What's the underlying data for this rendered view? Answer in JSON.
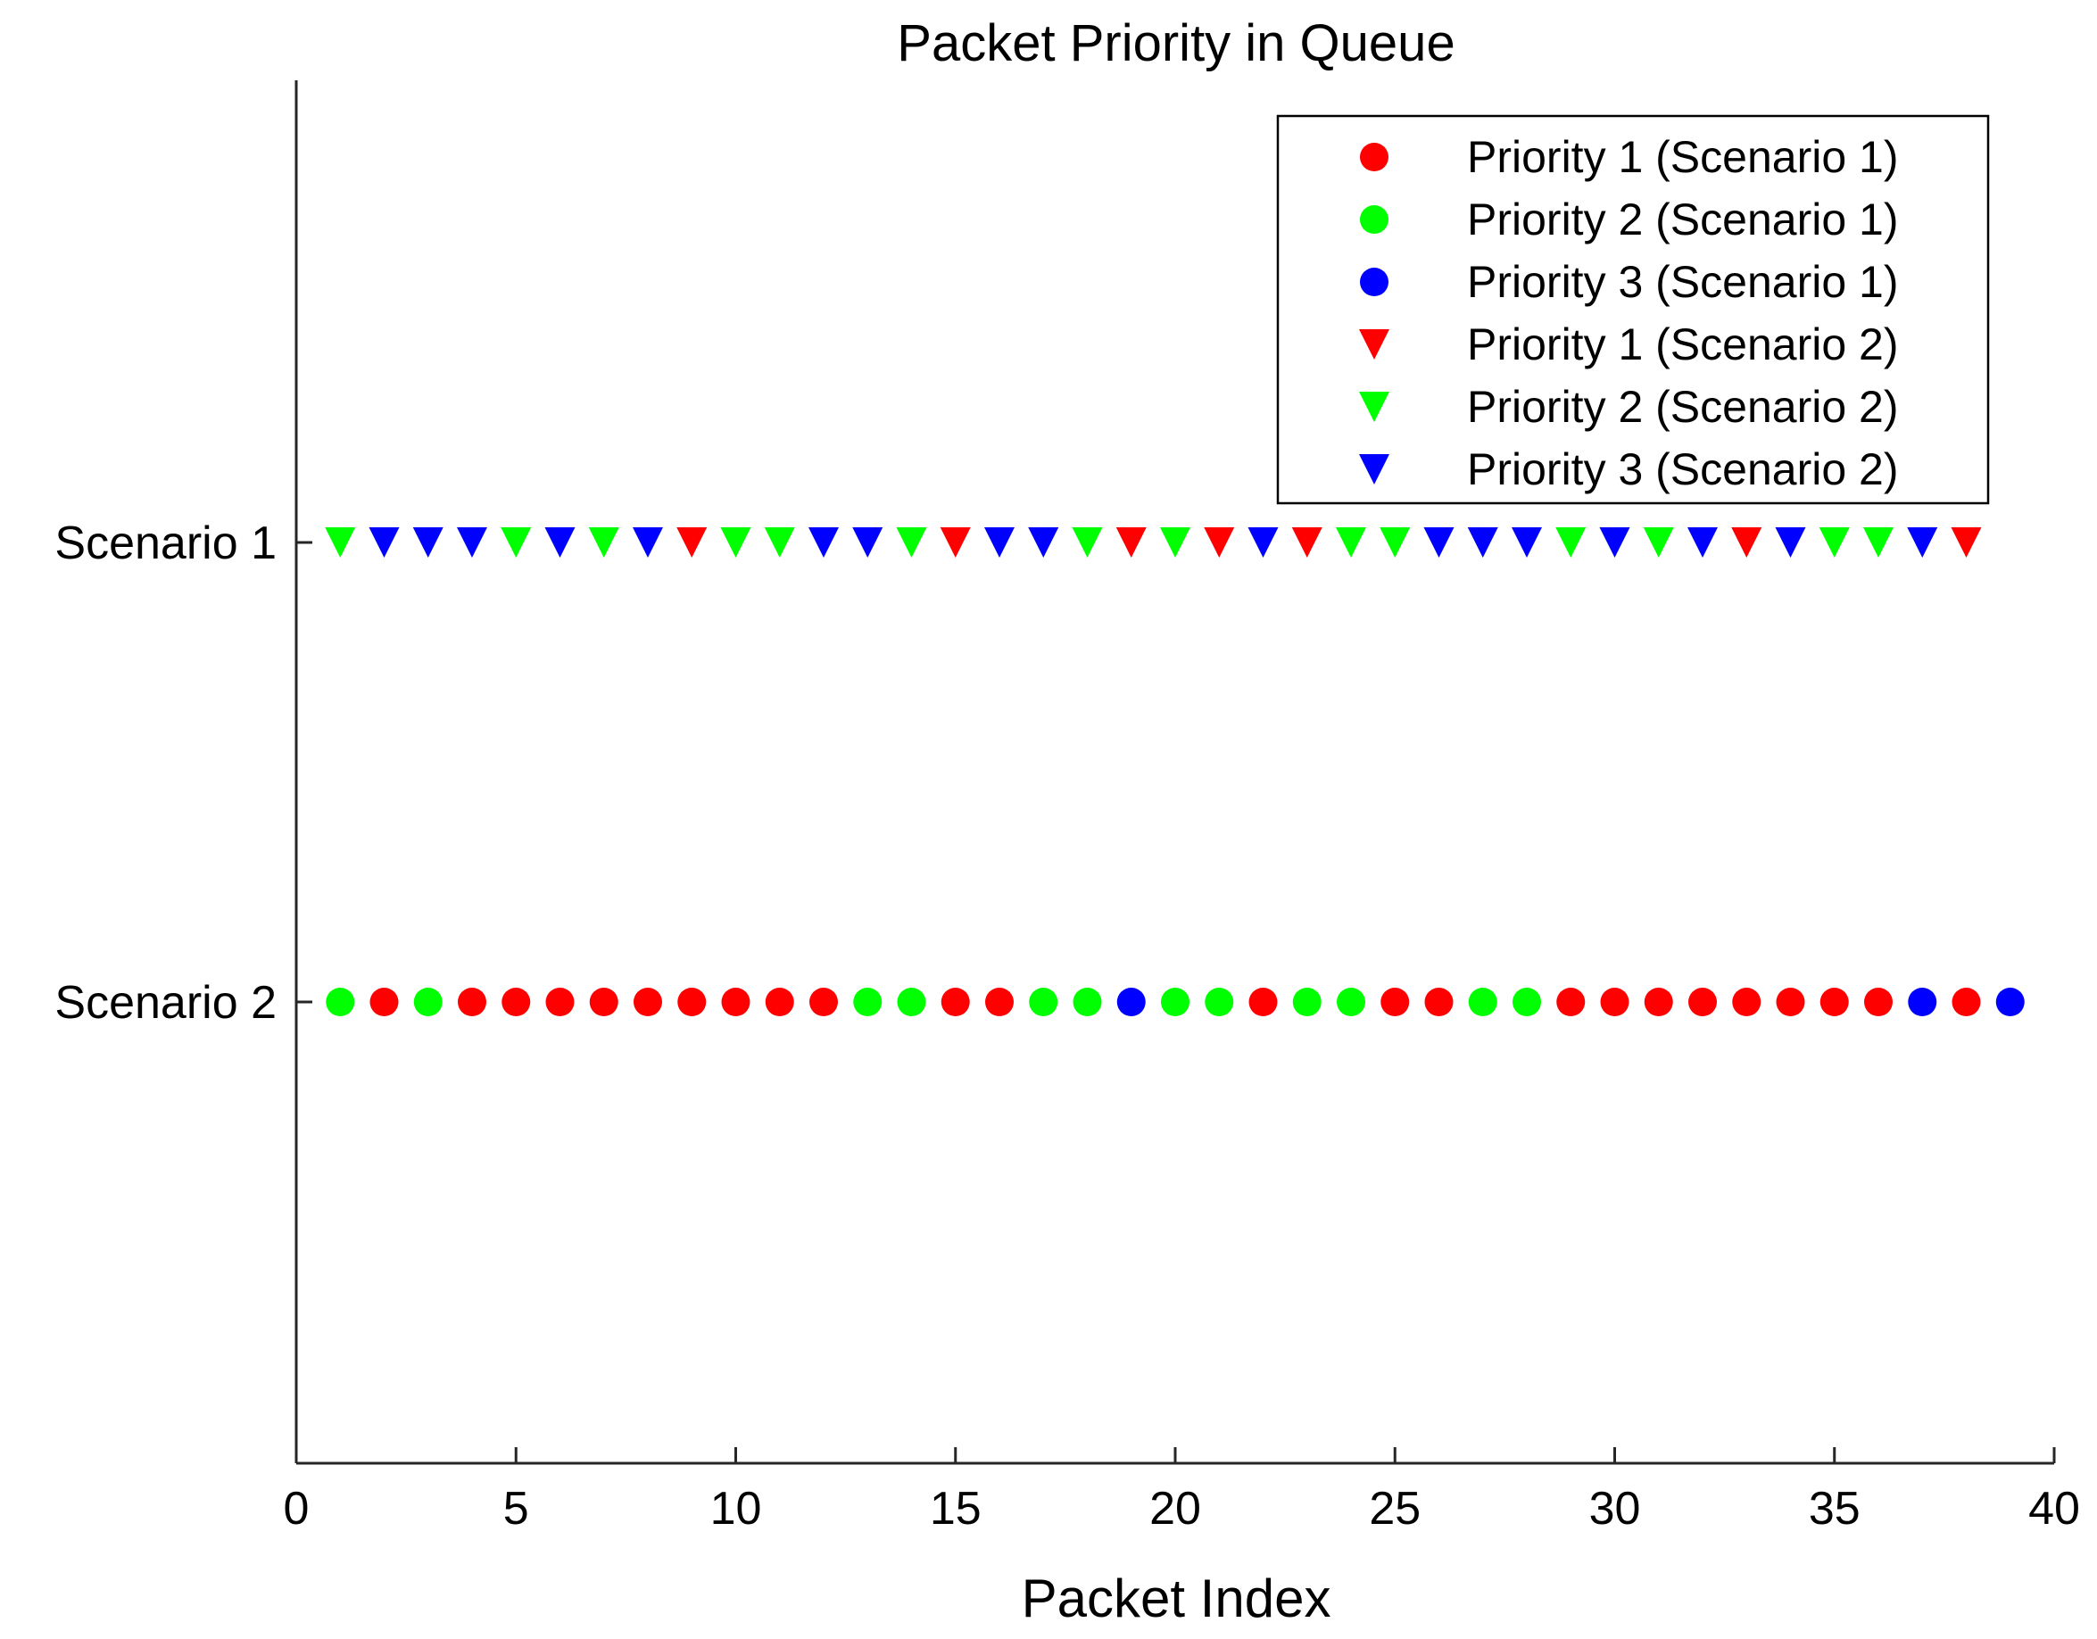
{
  "chart_data": {
    "type": "scatter",
    "title": "Packet Priority in Queue",
    "xlabel": "Packet Index",
    "ylabel": "",
    "xlim": [
      0,
      40
    ],
    "xticks": [
      0,
      5,
      10,
      15,
      20,
      25,
      30,
      35,
      40
    ],
    "ycategories": [
      "Scenario 1",
      "Scenario 2"
    ],
    "grid": false,
    "legend_position": "top-right",
    "colors": {
      "1": "#ff0000",
      "2": "#00ff00",
      "3": "#0000ff"
    },
    "series": [
      {
        "name": "Priority 1 (Scenario 1)",
        "marker": "circle",
        "color": "#ff0000",
        "y": "Scenario 2",
        "x": [
          2,
          4,
          5,
          6,
          7,
          8,
          9,
          10,
          11,
          12,
          15,
          16,
          22,
          25,
          26,
          29,
          30,
          31,
          32,
          33,
          34,
          35,
          36,
          38
        ]
      },
      {
        "name": "Priority 2 (Scenario 1)",
        "marker": "circle",
        "color": "#00ff00",
        "y": "Scenario 2",
        "x": [
          1,
          3,
          13,
          14,
          17,
          18,
          20,
          21,
          23,
          24,
          27,
          28
        ]
      },
      {
        "name": "Priority 3 (Scenario 1)",
        "marker": "circle",
        "color": "#0000ff",
        "y": "Scenario 2",
        "x": [
          19,
          37,
          39
        ]
      },
      {
        "name": "Priority 1 (Scenario 2)",
        "marker": "triangle-down",
        "color": "#ff0000",
        "y": "Scenario 1",
        "x": [
          9,
          15,
          19,
          21,
          23,
          33,
          38
        ]
      },
      {
        "name": "Priority 2 (Scenario 2)",
        "marker": "triangle-down",
        "color": "#00ff00",
        "y": "Scenario 1",
        "x": [
          1,
          5,
          7,
          10,
          11,
          14,
          18,
          20,
          24,
          25,
          29,
          31,
          35,
          36
        ]
      },
      {
        "name": "Priority 3 (Scenario 2)",
        "marker": "triangle-down",
        "color": "#0000ff",
        "y": "Scenario 1",
        "x": [
          2,
          3,
          4,
          6,
          8,
          12,
          13,
          16,
          17,
          22,
          26,
          27,
          28,
          30,
          32,
          34,
          37
        ]
      }
    ]
  }
}
